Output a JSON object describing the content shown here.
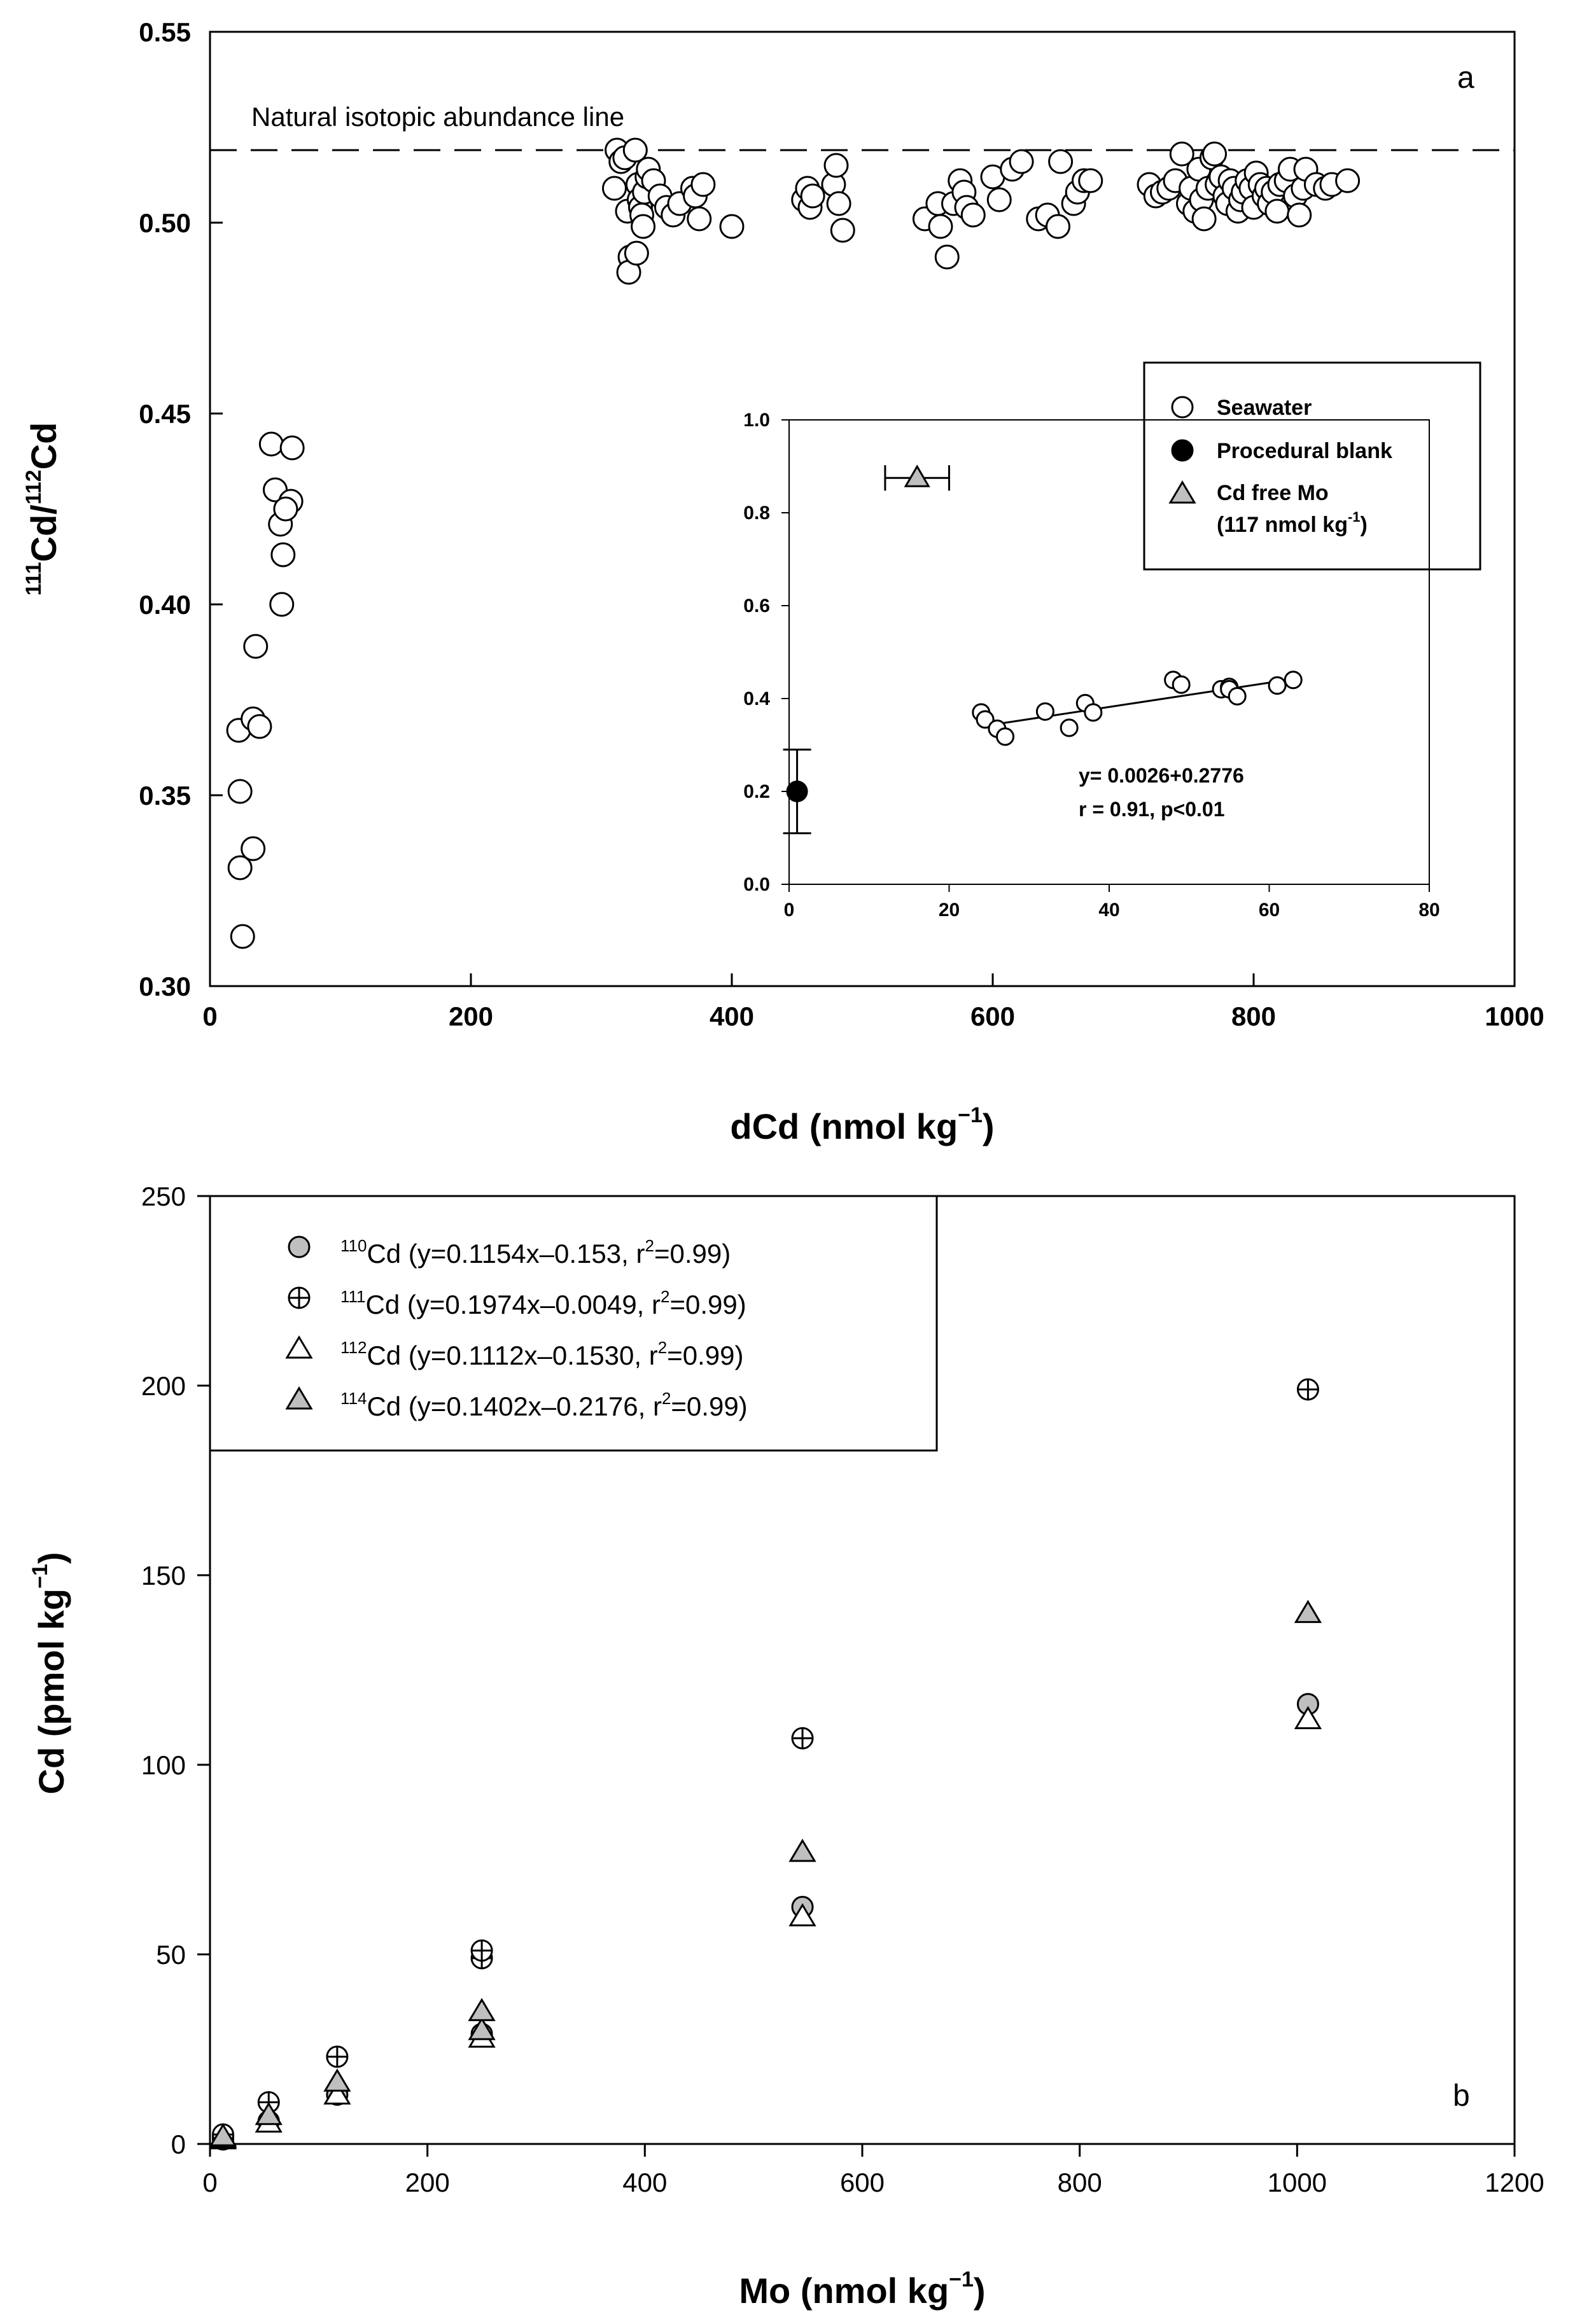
{
  "chart_data": [
    {
      "type": "scatter",
      "panel_label": "a",
      "xlabel": "dCd (nmol kg",
      "xlabel_sup": "−1",
      "xlabel_tail": ")",
      "ylabel_sup1": "111",
      "ylabel_mid": "Cd/",
      "ylabel_sup2": "112",
      "ylabel_tail": "Cd",
      "xlim": [
        0,
        1000
      ],
      "ylim": [
        0.3,
        0.55
      ],
      "xticks": [
        0,
        200,
        400,
        600,
        800,
        1000
      ],
      "xtick_labels": [
        "0",
        "200",
        "400",
        "600",
        "800",
        "1000"
      ],
      "yticks": [
        0.3,
        0.35,
        0.4,
        0.45,
        0.5,
        0.55
      ],
      "ytick_labels": [
        "0.30",
        "0.35",
        "0.40",
        "0.45",
        "0.50",
        "0.55"
      ],
      "reference_line": {
        "y": 0.519,
        "label": "Natural isotopic abundance line"
      },
      "series": [
        {
          "name": "Seawater",
          "marker": "open-circle",
          "points": [
            [
              25,
              0.313
            ],
            [
              23,
              0.331
            ],
            [
              23,
              0.351
            ],
            [
              22,
              0.367
            ],
            [
              33,
              0.336
            ],
            [
              33,
              0.37
            ],
            [
              38,
              0.368
            ],
            [
              35,
              0.389
            ],
            [
              55,
              0.4
            ],
            [
              56,
              0.413
            ],
            [
              54,
              0.421
            ],
            [
              50,
              0.43
            ],
            [
              47,
              0.442
            ],
            [
              63,
              0.441
            ],
            [
              62,
              0.427
            ],
            [
              58,
              0.425
            ],
            [
              312,
              0.519
            ],
            [
              315,
              0.516
            ],
            [
              318,
              0.517
            ],
            [
              310,
              0.509
            ],
            [
              320,
              0.503
            ],
            [
              322,
              0.491
            ],
            [
              321,
              0.487
            ],
            [
              326,
              0.519
            ],
            [
              328,
              0.51
            ],
            [
              329,
              0.506
            ],
            [
              330,
              0.504
            ],
            [
              331,
              0.502
            ],
            [
              332,
              0.499
            ],
            [
              327,
              0.492
            ],
            [
              333,
              0.508
            ],
            [
              335,
              0.512
            ],
            [
              336,
              0.514
            ],
            [
              340,
              0.511
            ],
            [
              345,
              0.507
            ],
            [
              350,
              0.504
            ],
            [
              355,
              0.502
            ],
            [
              360,
              0.505
            ],
            [
              370,
              0.509
            ],
            [
              372,
              0.507
            ],
            [
              375,
              0.501
            ],
            [
              378,
              0.51
            ],
            [
              400,
              0.499
            ],
            [
              455,
              0.506
            ],
            [
              458,
              0.509
            ],
            [
              460,
              0.504
            ],
            [
              462,
              0.507
            ],
            [
              478,
              0.51
            ],
            [
              480,
              0.515
            ],
            [
              482,
              0.505
            ],
            [
              485,
              0.498
            ],
            [
              548,
              0.501
            ],
            [
              558,
              0.505
            ],
            [
              560,
              0.499
            ],
            [
              565,
              0.491
            ],
            [
              570,
              0.505
            ],
            [
              575,
              0.511
            ],
            [
              578,
              0.508
            ],
            [
              580,
              0.504
            ],
            [
              585,
              0.502
            ],
            [
              600,
              0.512
            ],
            [
              605,
              0.506
            ],
            [
              615,
              0.514
            ],
            [
              622,
              0.516
            ],
            [
              635,
              0.501
            ],
            [
              642,
              0.502
            ],
            [
              650,
              0.499
            ],
            [
              652,
              0.516
            ],
            [
              662,
              0.505
            ],
            [
              665,
              0.508
            ],
            [
              670,
              0.511
            ],
            [
              675,
              0.511
            ],
            [
              720,
              0.51
            ],
            [
              725,
              0.507
            ],
            [
              730,
              0.508
            ],
            [
              735,
              0.509
            ],
            [
              740,
              0.511
            ],
            [
              745,
              0.518
            ],
            [
              750,
              0.505
            ],
            [
              752,
              0.509
            ],
            [
              755,
              0.503
            ],
            [
              758,
              0.514
            ],
            [
              760,
              0.506
            ],
            [
              762,
              0.501
            ],
            [
              765,
              0.509
            ],
            [
              768,
              0.517
            ],
            [
              770,
              0.518
            ],
            [
              772,
              0.51
            ],
            [
              775,
              0.512
            ],
            [
              778,
              0.507
            ],
            [
              780,
              0.505
            ],
            [
              782,
              0.511
            ],
            [
              785,
              0.509
            ],
            [
              788,
              0.503
            ],
            [
              790,
              0.506
            ],
            [
              792,
              0.508
            ],
            [
              795,
              0.511
            ],
            [
              798,
              0.509
            ],
            [
              800,
              0.504
            ],
            [
              802,
              0.513
            ],
            [
              805,
              0.51
            ],
            [
              808,
              0.507
            ],
            [
              810,
              0.509
            ],
            [
              812,
              0.505
            ],
            [
              815,
              0.508
            ],
            [
              818,
              0.503
            ],
            [
              820,
              0.51
            ],
            [
              825,
              0.511
            ],
            [
              828,
              0.514
            ],
            [
              832,
              0.507
            ],
            [
              835,
              0.502
            ],
            [
              838,
              0.509
            ],
            [
              840,
              0.514
            ],
            [
              848,
              0.51
            ],
            [
              855,
              0.509
            ],
            [
              860,
              0.51
            ],
            [
              872,
              0.511
            ]
          ]
        }
      ],
      "legend": [
        {
          "marker": "open-circle",
          "label": "Seawater"
        },
        {
          "marker": "filled-circle",
          "label": "Procedural blank"
        },
        {
          "marker": "gray-triangle",
          "label": "Cd free Mo",
          "sub_label": "(117 nmol kg",
          "sub_sup": "-1",
          "sub_tail": ")"
        }
      ],
      "inset": {
        "xlim": [
          0,
          80
        ],
        "ylim": [
          0.0,
          1.0
        ],
        "xticks": [
          0,
          20,
          40,
          60,
          80
        ],
        "xtick_labels": [
          "0",
          "20",
          "40",
          "60",
          "80"
        ],
        "yticks": [
          0.0,
          0.2,
          0.4,
          0.6,
          0.8,
          1.0
        ],
        "ytick_labels": [
          "0.0",
          "0.2",
          "0.4",
          "0.6",
          "0.8",
          "1.0"
        ],
        "seawater_points": [
          [
            24,
            0.37
          ],
          [
            24.5,
            0.355
          ],
          [
            26,
            0.335
          ],
          [
            27,
            0.318
          ],
          [
            32,
            0.372
          ],
          [
            35,
            0.337
          ],
          [
            37,
            0.39
          ],
          [
            38,
            0.37
          ],
          [
            48,
            0.44
          ],
          [
            49,
            0.43
          ],
          [
            54,
            0.42
          ],
          [
            55,
            0.425
          ],
          [
            55,
            0.42
          ],
          [
            56,
            0.405
          ],
          [
            61,
            0.428
          ],
          [
            63,
            0.44
          ]
        ],
        "fit_line": {
          "x": [
            24,
            63
          ],
          "y": [
            0.34,
            0.442
          ]
        },
        "procedural_blank": {
          "x": 1,
          "y": 0.2,
          "y_err": 0.09
        },
        "cd_free_mo": {
          "x": 16,
          "y": 0.875,
          "x_err": 4
        },
        "equation": "y= 0.0026+0.2776",
        "stats": "r = 0.91, p<0.01"
      }
    },
    {
      "type": "scatter",
      "panel_label": "b",
      "xlabel": "Mo (nmol kg",
      "xlabel_sup": "−1",
      "xlabel_tail": ")",
      "ylabel": "Cd (pmol kg",
      "ylabel_sup": "−1",
      "ylabel_tail": ")",
      "xlim": [
        0,
        1200
      ],
      "ylim": [
        0,
        250
      ],
      "xticks": [
        0,
        200,
        400,
        600,
        800,
        1000,
        1200
      ],
      "xtick_labels": [
        "0",
        "200",
        "400",
        "600",
        "800",
        "1000",
        "1200"
      ],
      "yticks": [
        0,
        50,
        100,
        150,
        200,
        250
      ],
      "ytick_labels": [
        "0",
        "50",
        "100",
        "150",
        "200",
        "250"
      ],
      "series": [
        {
          "name": "110Cd",
          "iso": "110",
          "marker": "gray-circle",
          "legend_text": "Cd (y=0.1154x–0.153, r",
          "x": [
            12,
            12,
            54,
            117,
            250,
            545,
            1010
          ],
          "y": [
            1.2,
            1.8,
            6.0,
            13.0,
            29.0,
            62.5,
            116.0
          ]
        },
        {
          "name": "111Cd",
          "iso": "111",
          "marker": "crossed-circle",
          "legend_text": "Cd (y=0.1974x–0.0049, r",
          "x": [
            12,
            12,
            54,
            117,
            250,
            250,
            545,
            1010
          ],
          "y": [
            2.0,
            2.5,
            11.0,
            23.0,
            49.0,
            51.0,
            107.0,
            199.0
          ]
        },
        {
          "name": "112Cd",
          "iso": "112",
          "marker": "open-triangle",
          "legend_text": "Cd (y=0.1112x–0.1530, r",
          "x": [
            12,
            12,
            54,
            117,
            250,
            545,
            1010
          ],
          "y": [
            1.2,
            1.6,
            5.6,
            13.0,
            28.0,
            60.0,
            112.0
          ]
        },
        {
          "name": "114Cd",
          "iso": "114",
          "marker": "gray-triangle",
          "legend_text": "Cd (y=0.1402x–0.2176, r",
          "x": [
            12,
            12,
            54,
            117,
            250,
            250,
            545,
            1010
          ],
          "y": [
            1.5,
            2.0,
            7.6,
            16.4,
            30.0,
            35.0,
            77.0,
            140.0
          ]
        }
      ],
      "legend_r2_sup": "2",
      "legend_r2_tail": "=0.99)"
    }
  ]
}
